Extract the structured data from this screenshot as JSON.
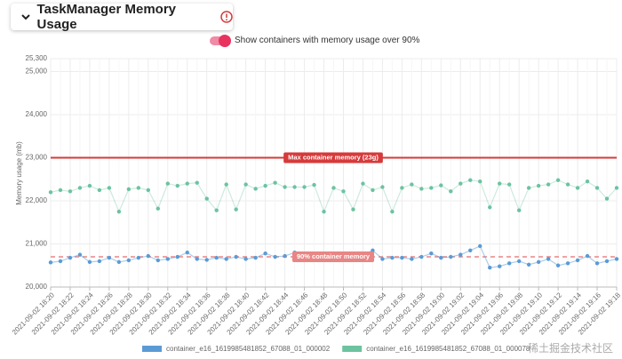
{
  "toggle": {
    "label": "Show containers with memory usage over 90%",
    "on": true
  },
  "watermark": "稀土掘金技术社区",
  "chart_data": {
    "type": "line",
    "title": "TaskManager Memory Usage",
    "y_label": "Memory usage (mb)",
    "ylim": [
      20000,
      25300
    ],
    "yticks": [
      {
        "value": 20000,
        "label": "20,000"
      },
      {
        "value": 21000,
        "label": "21,000"
      },
      {
        "value": 22000,
        "label": "22,000"
      },
      {
        "value": 23000,
        "label": "23,000"
      },
      {
        "value": 24000,
        "label": "24,000"
      },
      {
        "value": 25000,
        "label": "25,000"
      },
      {
        "value": 25300,
        "label": "25,300"
      }
    ],
    "grid": true,
    "categories": [
      "2021-09-02 18:20",
      null,
      "2021-09-02 18:22",
      null,
      "2021-09-02 18:24",
      null,
      "2021-09-02 18:26",
      null,
      "2021-09-02 18:28",
      null,
      "2021-09-02 18:30",
      null,
      "2021-09-02 18:32",
      null,
      "2021-09-02 18:34",
      null,
      "2021-09-02 18:36",
      null,
      "2021-09-02 18:38",
      null,
      "2021-09-02 18:40",
      null,
      "2021-09-02 18:42",
      null,
      "2021-09-02 18:44",
      null,
      "2021-09-02 18:46",
      null,
      "2021-09-02 18:48",
      null,
      "2021-09-02 18:50",
      null,
      "2021-09-02 18:52",
      null,
      "2021-09-02 18:54",
      null,
      "2021-09-02 18:56",
      null,
      "2021-09-02 18:58",
      null,
      "2021-09-02 19:00",
      null,
      "2021-09-02 19:02",
      null,
      "2021-09-02 19:04",
      null,
      "2021-09-02 19:06",
      null,
      "2021-09-02 19:08",
      null,
      "2021-09-02 19:10",
      null,
      "2021-09-02 19:12",
      null,
      "2021-09-02 19:14",
      null,
      "2021-09-02 19:16",
      null,
      "2021-09-02 19:18"
    ],
    "series": [
      {
        "name": "container_e16_1619985481852_67088_01_000002",
        "color": "#5b9bd5",
        "values": [
          20570,
          20600,
          20680,
          20750,
          20580,
          20600,
          20680,
          20580,
          20620,
          20680,
          20720,
          20620,
          20650,
          20700,
          20800,
          20650,
          20630,
          20680,
          20650,
          20700,
          20650,
          20680,
          20780,
          20700,
          20720,
          20800,
          20700,
          20720,
          20680,
          20700,
          20720,
          20700,
          20750,
          20850,
          20650,
          20680,
          20680,
          20650,
          20700,
          20780,
          20680,
          20700,
          20750,
          20850,
          20950,
          20450,
          20480,
          20550,
          20600,
          20520,
          20580,
          20650,
          20500,
          20550,
          20620,
          20720,
          20550,
          20600,
          20650
        ]
      },
      {
        "name": "container_e16_1619985481852_67088_01_000078",
        "color": "#6cc3a0",
        "values": [
          22200,
          22250,
          22220,
          22300,
          22350,
          22250,
          22300,
          21750,
          22270,
          22300,
          22250,
          21820,
          22400,
          22350,
          22400,
          22420,
          22050,
          21780,
          22380,
          21800,
          22380,
          22280,
          22350,
          22420,
          22320,
          22320,
          22320,
          22370,
          21750,
          22300,
          22220,
          21800,
          22400,
          22250,
          22320,
          21750,
          22300,
          22380,
          22280,
          22300,
          22360,
          22220,
          22400,
          22480,
          22450,
          21850,
          22400,
          22380,
          21780,
          22300,
          22350,
          22380,
          22480,
          22380,
          22300,
          22450,
          22300,
          22050,
          22300
        ]
      }
    ],
    "annotations": [
      {
        "label": "Max container memory (23g)",
        "value": 23000,
        "color": "#d63a3a",
        "dashed": false
      },
      {
        "label": "90% container memory",
        "value": 20700,
        "color": "#e88585",
        "dashed": true
      }
    ]
  }
}
